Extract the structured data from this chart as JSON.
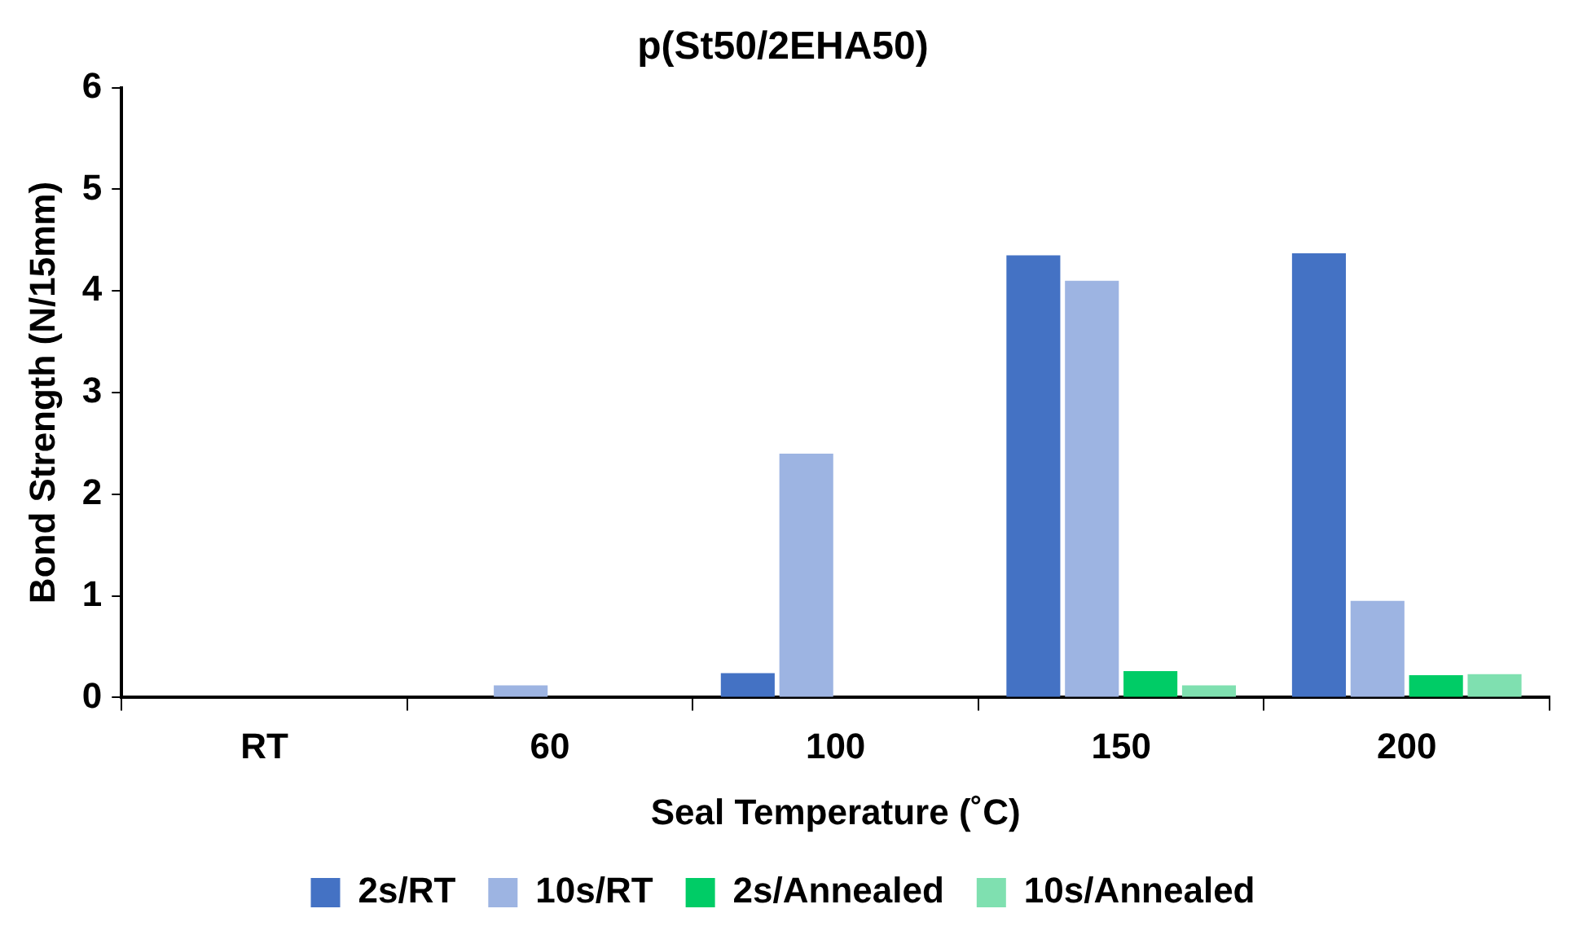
{
  "chart_data": {
    "type": "bar",
    "title": "p(St50/2EHA50)",
    "xlabel": "Seal Temperature (˚C)",
    "ylabel": "Bond Strength (N/15mm)",
    "categories": [
      "RT",
      "60",
      "100",
      "150",
      "200"
    ],
    "series": [
      {
        "name": "2s/RT",
        "color": "#4472c4",
        "values": [
          0,
          0,
          0.24,
          4.35,
          4.37
        ]
      },
      {
        "name": "10s/RT",
        "color": "#9db4e2",
        "values": [
          0,
          0.12,
          2.4,
          4.1,
          0.95
        ]
      },
      {
        "name": "2s/Annealed",
        "color": "#00cc66",
        "values": [
          0,
          0,
          0,
          0.26,
          0.22
        ]
      },
      {
        "name": "10s/Annealed",
        "color": "#7fe0b0",
        "values": [
          0,
          0,
          0,
          0.12,
          0.23
        ]
      }
    ],
    "ylim": [
      0,
      6
    ],
    "yticks": [
      0,
      1,
      2,
      3,
      4,
      5,
      6
    ],
    "grid": false,
    "legend": "bottom"
  }
}
